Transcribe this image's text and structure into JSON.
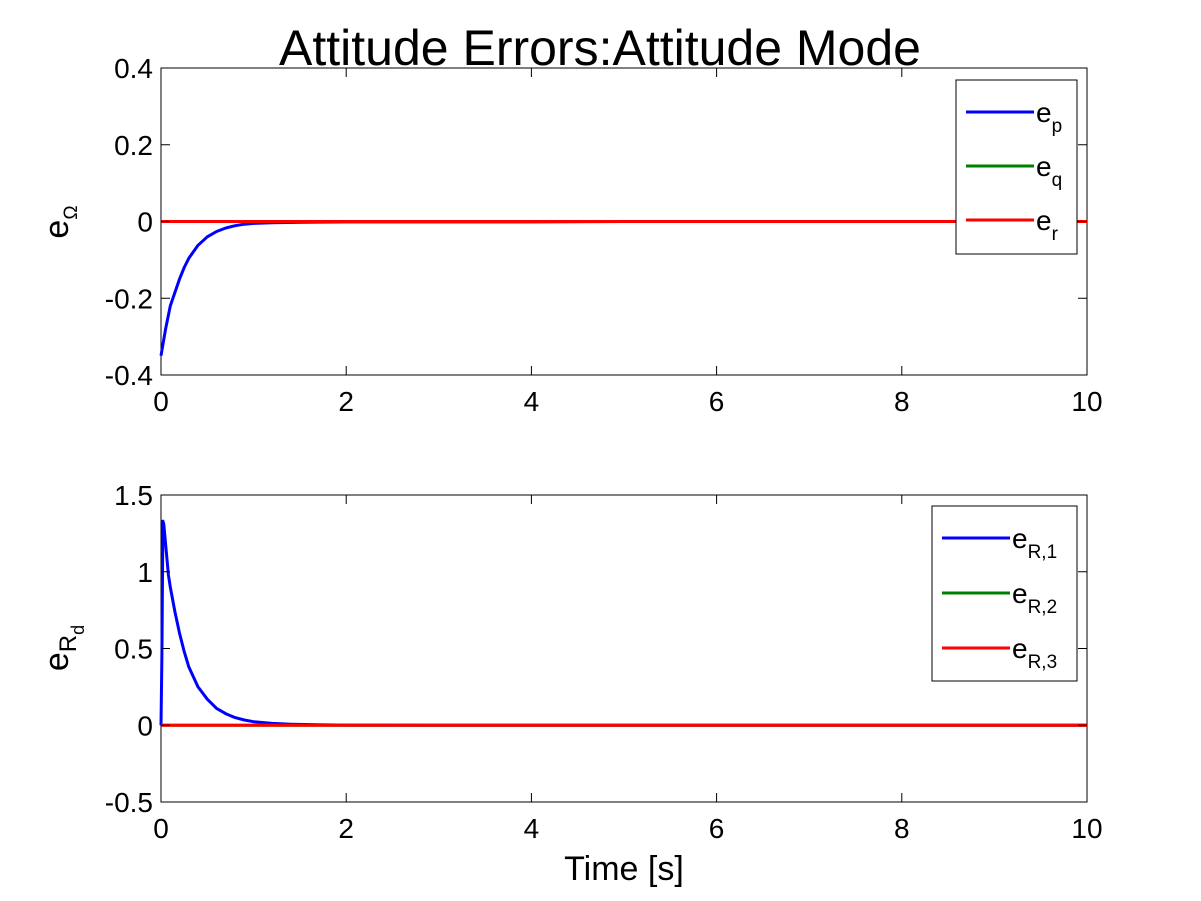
{
  "figure": {
    "title": "Attitude Errors:Attitude Mode"
  },
  "chart_data": [
    {
      "type": "line",
      "title": "Attitude Errors:Attitude Mode",
      "ylabel": {
        "base": "e",
        "sub": "Ω"
      },
      "xlabel": "",
      "xlim": [
        0,
        10
      ],
      "ylim": [
        -0.4,
        0.4
      ],
      "xticks": [
        0,
        2,
        4,
        6,
        8,
        10
      ],
      "xtick_labels": [
        "0",
        "2",
        "4",
        "6",
        "8",
        "10"
      ],
      "yticks": [
        -0.4,
        -0.2,
        0,
        0.2,
        0.4
      ],
      "ytick_labels": [
        "-0.4",
        "-0.2",
        "0",
        "0.2",
        "0.4"
      ],
      "grid": false,
      "legend_position": "top-right",
      "series": [
        {
          "name": "e",
          "sub": "p",
          "color": "#0000ff",
          "x": [
            0,
            0.05,
            0.1,
            0.15,
            0.2,
            0.25,
            0.3,
            0.4,
            0.5,
            0.6,
            0.7,
            0.8,
            0.9,
            1.0,
            1.2,
            1.5,
            2.0,
            3.0,
            4.0,
            5.0,
            6.0,
            7.0,
            8.0,
            9.0,
            10.0
          ],
          "y": [
            -0.35,
            -0.28,
            -0.22,
            -0.185,
            -0.15,
            -0.12,
            -0.096,
            -0.062,
            -0.04,
            -0.026,
            -0.017,
            -0.011,
            -0.007,
            -0.005,
            -0.003,
            -0.002,
            -0.001,
            -0.001,
            -0.001,
            0,
            0,
            0,
            0,
            0,
            0
          ]
        },
        {
          "name": "e",
          "sub": "q",
          "color": "#008000",
          "x": [
            0,
            10
          ],
          "y": [
            0,
            0
          ]
        },
        {
          "name": "e",
          "sub": "r",
          "color": "#ff0000",
          "x": [
            0,
            10
          ],
          "y": [
            0,
            0
          ]
        }
      ]
    },
    {
      "type": "line",
      "title": "",
      "ylabel": {
        "base": "e",
        "sub": "R",
        "subsub": "d"
      },
      "xlabel": "Time [s]",
      "xlim": [
        0,
        10
      ],
      "ylim": [
        -0.5,
        1.5
      ],
      "xticks": [
        0,
        2,
        4,
        6,
        8,
        10
      ],
      "xtick_labels": [
        "0",
        "2",
        "4",
        "6",
        "8",
        "10"
      ],
      "yticks": [
        -0.5,
        0,
        0.5,
        1,
        1.5
      ],
      "ytick_labels": [
        "-0.5",
        "0",
        "0.5",
        "1",
        "1.5"
      ],
      "grid": false,
      "legend_position": "top-right",
      "series": [
        {
          "name": "e",
          "sub": "R,1",
          "color": "#0000ff",
          "x": [
            0,
            0.01,
            0.02,
            0.03,
            0.05,
            0.08,
            0.1,
            0.15,
            0.2,
            0.25,
            0.3,
            0.4,
            0.5,
            0.6,
            0.7,
            0.8,
            0.9,
            1.0,
            1.2,
            1.4,
            1.7,
            2.0,
            3.0,
            5.0,
            10.0
          ],
          "y": [
            0,
            0.45,
            1.33,
            1.31,
            1.18,
            0.98,
            0.9,
            0.74,
            0.6,
            0.48,
            0.38,
            0.25,
            0.17,
            0.11,
            0.075,
            0.05,
            0.034,
            0.023,
            0.012,
            0.007,
            0.003,
            0.001,
            0,
            0,
            0
          ]
        },
        {
          "name": "e",
          "sub": "R,2",
          "color": "#008000",
          "x": [
            0,
            10
          ],
          "y": [
            0,
            0
          ]
        },
        {
          "name": "e",
          "sub": "R,3",
          "color": "#ff0000",
          "x": [
            0,
            10
          ],
          "y": [
            0,
            0
          ]
        }
      ]
    }
  ]
}
